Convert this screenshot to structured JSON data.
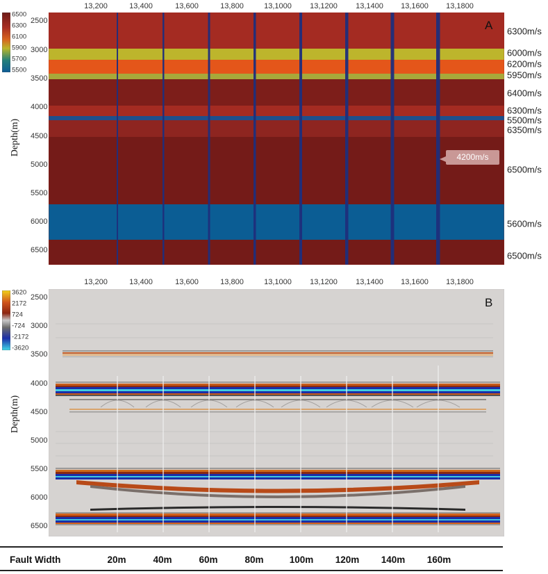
{
  "panel_a": {
    "letter": "A",
    "x_ticks": [
      "13,200",
      "13,400",
      "13,600",
      "13,800",
      "13,1000",
      "13,1200",
      "13,1400",
      "13,1600",
      "13,1800"
    ],
    "y_ticks": [
      "2500",
      "3000",
      "3500",
      "4000",
      "4500",
      "5000",
      "5500",
      "6000",
      "6500"
    ],
    "y_label": "Depth(m)",
    "colorbar": {
      "labels": [
        "6500",
        "6300",
        "6100",
        "5900",
        "5700",
        "5500"
      ],
      "colors": [
        "#6e1a17",
        "#a82e22",
        "#d7641e",
        "#b9b52a",
        "#24807a",
        "#0e5c96"
      ]
    },
    "velocity_labels": [
      "6300m/s",
      "6000m/s",
      "6200m/s",
      "5950m/s",
      "6400m/s",
      "6300m/s",
      "5500m/s",
      "6350m/s",
      "6500m/s",
      "5600m/s",
      "6500m/s"
    ],
    "fault_callout": "4200m/s",
    "colors": {
      "v6300": "#a42b22",
      "v6000": "#bdb52c",
      "v6200": "#e4561a",
      "v5950": "#a8a83a",
      "v6400": "#7d1e1a",
      "v5500": "#1e4f8c",
      "v6350": "#8e2520",
      "v6500": "#741b18",
      "v5600": "#0b5d94",
      "fault": "#1f2f7c"
    }
  },
  "panel_b": {
    "letter": "B",
    "x_ticks": [
      "13,200",
      "13,400",
      "13,600",
      "13,800",
      "13,1000",
      "13,1200",
      "13,1400",
      "13,1600",
      "13,1800"
    ],
    "y_ticks": [
      "2500",
      "3000",
      "3500",
      "4000",
      "4500",
      "5000",
      "5500",
      "6000",
      "6500"
    ],
    "y_label": "Depth(m)",
    "colorbar": {
      "labels": [
        "3620",
        "2172",
        "724",
        "-724",
        "-2172",
        "-3620"
      ],
      "colors": [
        "#f2d21a",
        "#d0541c",
        "#8c2410",
        "#6c6c6c",
        "#1a2ea8",
        "#40d8e8"
      ]
    }
  },
  "fault_width": {
    "title": "Fault Width",
    "values": [
      "20m",
      "40m",
      "60m",
      "80m",
      "100m",
      "120m",
      "140m",
      "160m"
    ]
  }
}
